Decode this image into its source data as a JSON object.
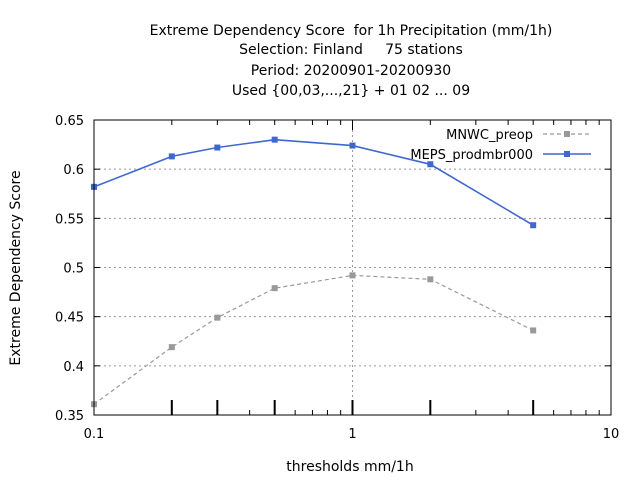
{
  "chart_data": {
    "type": "line",
    "title_lines": [
      "Extreme Dependency Score  for 1h Precipitation (mm/1h)",
      "Selection: Finland     75 stations",
      "Period: 20200901-20200930",
      "Used {00,03,...,21} + 01 02 ... 09"
    ],
    "xlabel": "thresholds mm/1h",
    "ylabel": "Extreme Dependency Score",
    "xscale": "log",
    "xlim": [
      0.1,
      10
    ],
    "ylim": [
      0.35,
      0.65
    ],
    "xticks": [
      {
        "value": 0.1,
        "label": "0.1"
      },
      {
        "value": 1,
        "label": "1"
      },
      {
        "value": 10,
        "label": "10"
      }
    ],
    "yticks": [
      {
        "value": 0.35,
        "label": "0.35"
      },
      {
        "value": 0.4,
        "label": "0.4"
      },
      {
        "value": 0.45,
        "label": "0.45"
      },
      {
        "value": 0.5,
        "label": "0.5"
      },
      {
        "value": 0.55,
        "label": "0.55"
      },
      {
        "value": 0.6,
        "label": "0.6"
      },
      {
        "value": 0.65,
        "label": "0.65"
      }
    ],
    "count_tick_x": [
      0.2,
      0.3,
      0.5,
      1,
      2,
      5
    ],
    "grid": true,
    "legend_position": "top-right",
    "series": [
      {
        "name": "MNWC_preop",
        "color": "#999999",
        "dashed": true,
        "x": [
          0.1,
          0.2,
          0.3,
          0.5,
          1,
          2,
          5
        ],
        "y": [
          0.361,
          0.419,
          0.449,
          0.479,
          0.492,
          0.488,
          0.436
        ]
      },
      {
        "name": "MEPS_prodmbr000",
        "color": "#3f67cf",
        "dashed": false,
        "x": [
          0.1,
          0.2,
          0.3,
          0.5,
          1,
          2,
          5
        ],
        "y": [
          0.582,
          0.613,
          0.622,
          0.63,
          0.624,
          0.605,
          0.543
        ]
      }
    ]
  }
}
